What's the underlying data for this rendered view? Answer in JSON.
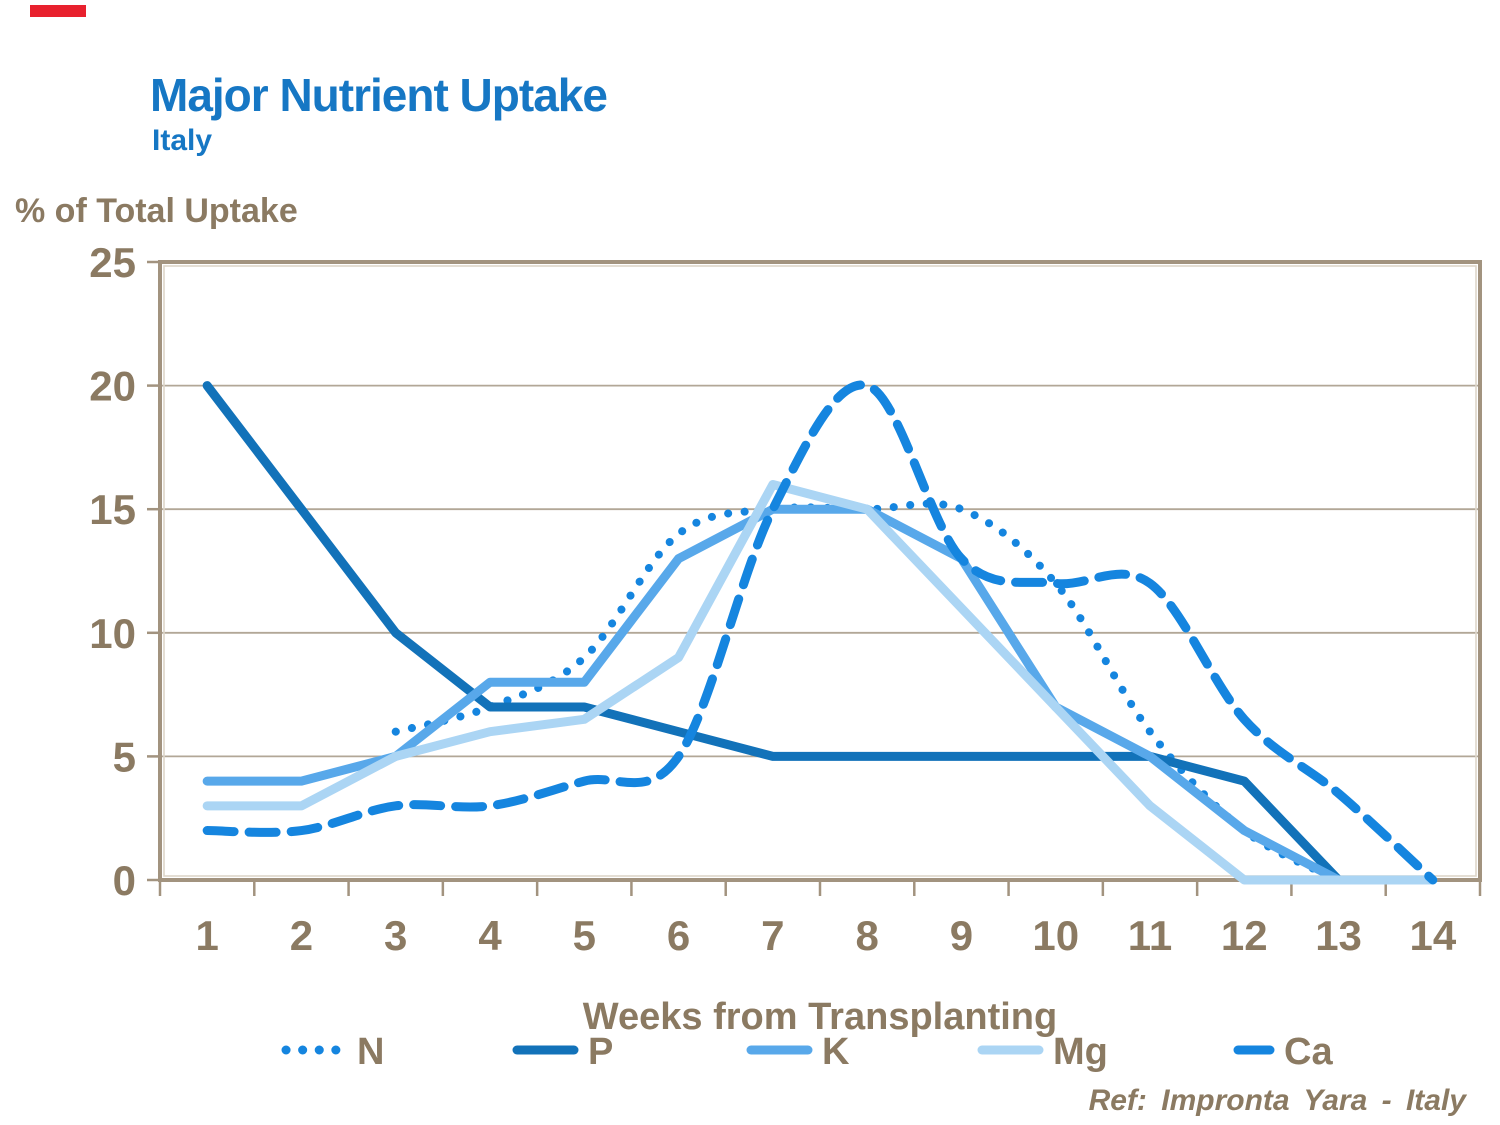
{
  "page": {
    "title": "Major Nutrient Uptake",
    "subtitle": "Italy",
    "y_axis_title": "% of Total Uptake",
    "x_axis_title": "Weeks from Transplanting",
    "footer_ref": "Ref: Impronta Yara - Italy"
  },
  "colors": {
    "title_blue": "#1677c4",
    "text_brown": "#8b7a62",
    "gridline": "#b2a797",
    "frame_outer": "#a2937f",
    "frame_inner": "#ddd6ca",
    "accent_red": "#e8212e"
  },
  "chart_data": {
    "type": "line",
    "title": "Major Nutrient Uptake",
    "subtitle": "Italy",
    "xlabel": "Weeks from Transplanting",
    "ylabel": "% of Total Uptake",
    "categories": [
      "1",
      "2",
      "3",
      "4",
      "5",
      "6",
      "7",
      "8",
      "9",
      "10",
      "11",
      "12",
      "13",
      "14"
    ],
    "ylim": [
      0,
      25
    ],
    "yticks": [
      0,
      5,
      10,
      15,
      20,
      25
    ],
    "grid": "horizontal",
    "legend_position": "bottom",
    "series": [
      {
        "name": "N",
        "style": "dotted",
        "smooth": true,
        "color": "#1585df",
        "values": [
          null,
          null,
          6,
          7,
          9,
          14,
          15,
          15,
          15,
          12,
          6,
          2,
          0,
          null
        ]
      },
      {
        "name": "P",
        "style": "solid",
        "smooth": false,
        "color": "#1272b9",
        "values": [
          20,
          15,
          10,
          7,
          7,
          6,
          5,
          5,
          5,
          5,
          5,
          4,
          0,
          null
        ]
      },
      {
        "name": "K",
        "style": "solid",
        "smooth": false,
        "color": "#58a8ea",
        "values": [
          4,
          4,
          5,
          8,
          8,
          13,
          15,
          15,
          13,
          7,
          5,
          2,
          0,
          null
        ]
      },
      {
        "name": "Mg",
        "style": "solid",
        "smooth": false,
        "color": "#abd5f4",
        "values": [
          3,
          3,
          5,
          6,
          6.5,
          9,
          16,
          15,
          11,
          7,
          3,
          0,
          0,
          0
        ]
      },
      {
        "name": "Ca",
        "style": "dashed",
        "smooth": true,
        "color": "#1585df",
        "values": [
          2,
          2,
          3,
          3,
          4,
          5,
          15,
          20,
          13,
          12,
          12,
          6.5,
          3.5,
          0
        ]
      }
    ]
  }
}
